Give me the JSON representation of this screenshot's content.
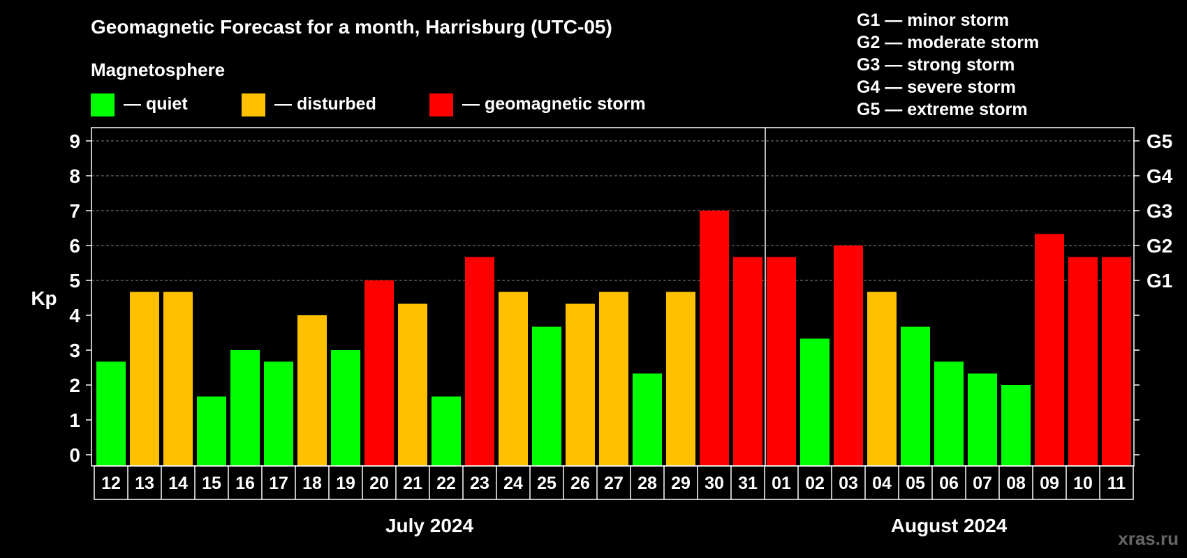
{
  "chart_data": {
    "type": "bar",
    "title": "Geomagnetic Forecast for a month, Harrisburg (UTC-05)",
    "legend_title": "Magnetosphere",
    "legend": [
      {
        "label": "— quiet",
        "color": "#00ff00"
      },
      {
        "label": "— disturbed",
        "color": "#ffc000"
      },
      {
        "label": "— geomagnetic storm",
        "color": "#ff0000"
      }
    ],
    "storm_scale": [
      "G1 — minor storm",
      "G2 — moderate storm",
      "G3 — strong storm",
      "G4 — severe storm",
      "G5 — extreme storm"
    ],
    "ylabel": "Kp",
    "ylim": [
      0,
      9
    ],
    "y_ticks": [
      "0",
      "1",
      "2",
      "3",
      "4",
      "5",
      "6",
      "7",
      "8",
      "9"
    ],
    "right_axis": [
      {
        "kp": 5,
        "label": "G1"
      },
      {
        "kp": 6,
        "label": "G2"
      },
      {
        "kp": 7,
        "label": "G3"
      },
      {
        "kp": 8,
        "label": "G4"
      },
      {
        "kp": 9,
        "label": "G5"
      }
    ],
    "categories": [
      "12",
      "13",
      "14",
      "15",
      "16",
      "17",
      "18",
      "19",
      "20",
      "21",
      "22",
      "23",
      "24",
      "25",
      "26",
      "27",
      "28",
      "29",
      "30",
      "31",
      "01",
      "02",
      "03",
      "04",
      "05",
      "06",
      "07",
      "08",
      "09",
      "10",
      "11"
    ],
    "values": [
      2.67,
      4.67,
      4.67,
      1.67,
      3,
      2.67,
      4,
      3,
      5,
      4.33,
      1.67,
      5.67,
      4.67,
      3.67,
      4.33,
      4.67,
      2.33,
      4.67,
      7,
      5.67,
      5.67,
      3.33,
      6,
      4.67,
      3.67,
      2.67,
      2.33,
      2,
      6.33,
      5.67,
      5.67
    ],
    "colors": [
      "#00ff00",
      "#ffc000",
      "#ffc000",
      "#00ff00",
      "#00ff00",
      "#00ff00",
      "#ffc000",
      "#00ff00",
      "#ff0000",
      "#ffc000",
      "#00ff00",
      "#ff0000",
      "#ffc000",
      "#00ff00",
      "#ffc000",
      "#ffc000",
      "#00ff00",
      "#ffc000",
      "#ff0000",
      "#ff0000",
      "#ff0000",
      "#00ff00",
      "#ff0000",
      "#ffc000",
      "#00ff00",
      "#00ff00",
      "#00ff00",
      "#00ff00",
      "#ff0000",
      "#ff0000",
      "#ff0000"
    ],
    "months": [
      {
        "label": "July 2024",
        "count": 20
      },
      {
        "label": "August 2024",
        "count": 11
      }
    ],
    "grid": "dashed at Kp 5-9"
  },
  "watermark": "xras.ru"
}
